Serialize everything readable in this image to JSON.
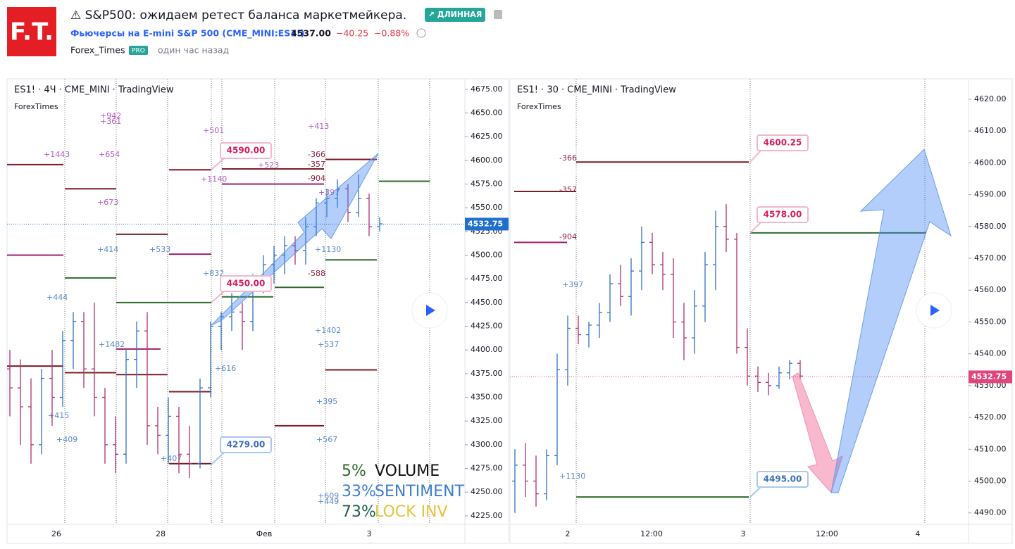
{
  "header": {
    "logo": "F.T.",
    "title": "⚠ S&P500: ожидаем ретест баланса маркетмейкера.",
    "badge": "↗ ДЛИННАЯ",
    "symbol": "Фьючерсы на E-mini S&P 500 (CME_MINI:ES1!)",
    "price": "4537.00",
    "change": "−40.25",
    "change_pct": "−0.88%",
    "author": "Forex_Times",
    "author_badge": "PRO",
    "time": "один час назад"
  },
  "charts": [
    {
      "title": "ES1! · 4Ч · CME_MINI · TradingView",
      "author": "ForexTimes",
      "ylim": [
        4216,
        4686
      ],
      "yticks": [
        {
          "value": 4225,
          "label": "4225.00"
        },
        {
          "value": 4250,
          "label": "4250.00"
        },
        {
          "value": 4275,
          "label": "4275.00"
        },
        {
          "value": 4300,
          "label": "4300.00"
        },
        {
          "value": 4325,
          "label": "4325.00"
        },
        {
          "value": 4350,
          "label": "4350.00"
        },
        {
          "value": 4375,
          "label": "4375.00"
        },
        {
          "value": 4400,
          "label": "4400.00"
        },
        {
          "value": 4425,
          "label": "4425.00"
        },
        {
          "value": 4450,
          "label": "4450.00"
        },
        {
          "value": 4475,
          "label": "4475.00"
        },
        {
          "value": 4500,
          "label": "4500.00"
        },
        {
          "value": 4525,
          "label": "4525.00"
        },
        {
          "value": 4550,
          "label": "4550.00"
        },
        {
          "value": 4575,
          "label": "4575.00"
        },
        {
          "value": 4600,
          "label": "4600.00"
        },
        {
          "value": 4625,
          "label": "4625.00"
        },
        {
          "value": 4650,
          "label": "4650.00"
        },
        {
          "value": 4675,
          "label": "4675.00"
        }
      ],
      "xlabels": [
        "26",
        "28",
        "Фев",
        "3"
      ],
      "last": {
        "value": 4532.75,
        "label": "4532.75",
        "color": "#1e6fd0"
      },
      "bars": [
        [
          4380,
          4400,
          4330,
          4360
        ],
        [
          4360,
          4390,
          4300,
          4340
        ],
        [
          4340,
          4370,
          4280,
          4300
        ],
        [
          4300,
          4380,
          4290,
          4370
        ],
        [
          4370,
          4400,
          4320,
          4350
        ],
        [
          4350,
          4420,
          4340,
          4410
        ],
        [
          4410,
          4440,
          4380,
          4430
        ],
        [
          4430,
          4440,
          4360,
          4380
        ],
        [
          4380,
          4450,
          4330,
          4350
        ],
        [
          4350,
          4360,
          4280,
          4300
        ],
        [
          4300,
          4330,
          4270,
          4290
        ],
        [
          4290,
          4400,
          4280,
          4390
        ],
        [
          4390,
          4430,
          4360,
          4420
        ],
        [
          4420,
          4440,
          4300,
          4320
        ],
        [
          4320,
          4340,
          4290,
          4310
        ],
        [
          4310,
          4350,
          4280,
          4330
        ],
        [
          4330,
          4340,
          4270,
          4290
        ],
        [
          4290,
          4320,
          4265,
          4280
        ],
        [
          4280,
          4370,
          4275,
          4360
        ],
        [
          4360,
          4430,
          4350,
          4425
        ],
        [
          4425,
          4440,
          4400,
          4435
        ],
        [
          4435,
          4460,
          4420,
          4440
        ],
        [
          4440,
          4450,
          4400,
          4430
        ],
        [
          4430,
          4480,
          4420,
          4470
        ],
        [
          4470,
          4500,
          4460,
          4490
        ],
        [
          4490,
          4510,
          4470,
          4500
        ],
        [
          4500,
          4520,
          4480,
          4510
        ],
        [
          4510,
          4520,
          4490,
          4505
        ],
        [
          4505,
          4540,
          4490,
          4530
        ],
        [
          4530,
          4560,
          4520,
          4555
        ],
        [
          4555,
          4570,
          4540,
          4560
        ],
        [
          4560,
          4580,
          4550,
          4570
        ],
        [
          4570,
          4575,
          4535,
          4545
        ],
        [
          4545,
          4585,
          4540,
          4560
        ],
        [
          4560,
          4565,
          4520,
          4530
        ],
        [
          4530,
          4540,
          4525,
          4533
        ]
      ],
      "levels": [
        {
          "value": 4595.5,
          "color": "#7a1c22"
        },
        {
          "value": 4570,
          "color": "#7a1c22"
        },
        {
          "value": 4590,
          "color": "#7a1c22"
        },
        {
          "value": 4591,
          "color": "#7a1c22"
        },
        {
          "value": 4601,
          "color": "#7a1c22"
        },
        {
          "value": 4575,
          "color": "#a0206e"
        },
        {
          "value": 4578,
          "color": "#2e6b2e"
        },
        {
          "value": 4522,
          "color": "#7a1c22"
        },
        {
          "value": 4501,
          "color": "#a0206e"
        },
        {
          "value": 4500,
          "color": "#a0206e"
        },
        {
          "value": 4476,
          "color": "#2e6b2e"
        },
        {
          "value": 4495,
          "color": "#2e6b2e"
        },
        {
          "value": 4466,
          "color": "#2e6b2e"
        },
        {
          "value": 4456,
          "color": "#2e6b2e"
        },
        {
          "value": 4450,
          "color": "#2e6b2e"
        },
        {
          "value": 4401,
          "color": "#a0206e"
        },
        {
          "value": 4383,
          "color": "#7a1c22"
        },
        {
          "value": 4376,
          "color": "#7a1c22"
        },
        {
          "value": 4374,
          "color": "#7a1c22"
        },
        {
          "value": 4356,
          "color": "#7a1c22"
        },
        {
          "value": 4379,
          "color": "#7a1c22"
        },
        {
          "value": 4320,
          "color": "#7a1c22"
        },
        {
          "value": 4280,
          "color": "#7a1c22"
        }
      ],
      "callouts": [
        {
          "value": 4590,
          "label": "4590.00",
          "color": "#d81b60"
        },
        {
          "value": 4450,
          "label": "4450.00",
          "color": "#d81b60"
        },
        {
          "value": 4279,
          "label": "4279.00",
          "color": "#3d6fb6"
        }
      ],
      "annotations": [
        "+1443",
        "+654",
        "+942",
        "+361",
        "+501",
        "+673",
        "+414",
        "+533",
        "+1140",
        "+523",
        "-366",
        "-357",
        "-904",
        "+397",
        "+1130",
        "-588",
        "+832",
        "+1402",
        "+537",
        "+616",
        "+395",
        "+567",
        "+1482",
        "+415",
        "+409",
        "+407",
        "+609",
        "+449",
        "+444",
        "+413"
      ],
      "overlay": [
        {
          "pct": "5%",
          "label": "VOLUME",
          "color": "#111111",
          "pct_color": "#2e6b2e"
        },
        {
          "pct": "33%",
          "label": "SENTIMENT",
          "color": "#3d7fd0",
          "pct_color": "#3d7fd0"
        },
        {
          "pct": "73%",
          "label": "LOCK INV",
          "color": "#e8c23a",
          "pct_color": "#1f5f4a"
        }
      ]
    },
    {
      "title": "ES1! · 30 · CME_MINI · TradingView",
      "author": "ForexTimes",
      "ylim": [
        4486.4,
        4626.4
      ],
      "yticks": [
        {
          "value": 4490,
          "label": "4490.00"
        },
        {
          "value": 4500,
          "label": "4500.00"
        },
        {
          "value": 4510,
          "label": "4510.00"
        },
        {
          "value": 4520,
          "label": "4520.00"
        },
        {
          "value": 4530,
          "label": "4530.00"
        },
        {
          "value": 4540,
          "label": "4540.00"
        },
        {
          "value": 4550,
          "label": "4550.00"
        },
        {
          "value": 4560,
          "label": "4560.00"
        },
        {
          "value": 4570,
          "label": "4570.00"
        },
        {
          "value": 4580,
          "label": "4580.00"
        },
        {
          "value": 4590,
          "label": "4590.00"
        },
        {
          "value": 4600,
          "label": "4600.00"
        },
        {
          "value": 4610,
          "label": "4610.00"
        },
        {
          "value": 4620,
          "label": "4620.00"
        }
      ],
      "xlabels": [
        "2",
        "12:00",
        "3",
        "12:00",
        "4"
      ],
      "last": {
        "value": 4532.75,
        "label": "4532.75",
        "color": "#e0457b"
      },
      "bars": [
        [
          4500,
          4510,
          4490,
          4505
        ],
        [
          4505,
          4512,
          4495,
          4500
        ],
        [
          4500,
          4508,
          4492,
          4496
        ],
        [
          4496,
          4510,
          4494,
          4508
        ],
        [
          4508,
          4540,
          4505,
          4535
        ],
        [
          4535,
          4552,
          4530,
          4548
        ],
        [
          4548,
          4552,
          4543,
          4546
        ],
        [
          4546,
          4550,
          4542,
          4549
        ],
        [
          4549,
          4556,
          4545,
          4553
        ],
        [
          4553,
          4565,
          4550,
          4562
        ],
        [
          4562,
          4568,
          4555,
          4558
        ],
        [
          4558,
          4570,
          4552,
          4566
        ],
        [
          4566,
          4580,
          4560,
          4575
        ],
        [
          4575,
          4578,
          4565,
          4568
        ],
        [
          4568,
          4572,
          4560,
          4565
        ],
        [
          4565,
          4570,
          4545,
          4550
        ],
        [
          4550,
          4556,
          4538,
          4545
        ],
        [
          4545,
          4560,
          4540,
          4555
        ],
        [
          4555,
          4572,
          4550,
          4568
        ],
        [
          4568,
          4585,
          4560,
          4580
        ],
        [
          4580,
          4587,
          4572,
          4576
        ],
        [
          4576,
          4578,
          4540,
          4542
        ],
        [
          4542,
          4548,
          4530,
          4533
        ],
        [
          4533,
          4536,
          4528,
          4531
        ],
        [
          4531,
          4534,
          4527,
          4530
        ],
        [
          4530,
          4536,
          4529,
          4534
        ],
        [
          4534,
          4538,
          4532,
          4537
        ],
        [
          4537,
          4538,
          4532,
          4533
        ]
      ],
      "levels": [
        {
          "value": 4600.25,
          "color": "#7a1c22"
        },
        {
          "value": 4591,
          "color": "#7a1c22"
        },
        {
          "value": 4575,
          "color": "#a0206e"
        },
        {
          "value": 4578,
          "color": "#2e6b2e"
        },
        {
          "value": 4495,
          "color": "#2e6b2e"
        }
      ],
      "callouts": [
        {
          "value": 4600.25,
          "label": "4600.25",
          "color": "#d81b60"
        },
        {
          "value": 4578,
          "label": "4578.00",
          "color": "#d81b60"
        },
        {
          "value": 4495,
          "label": "4495.00",
          "color": "#3d6fb6"
        }
      ],
      "annotations": [
        "-366",
        "-357",
        "-904",
        "+397",
        "+1130"
      ],
      "overlay": []
    }
  ]
}
